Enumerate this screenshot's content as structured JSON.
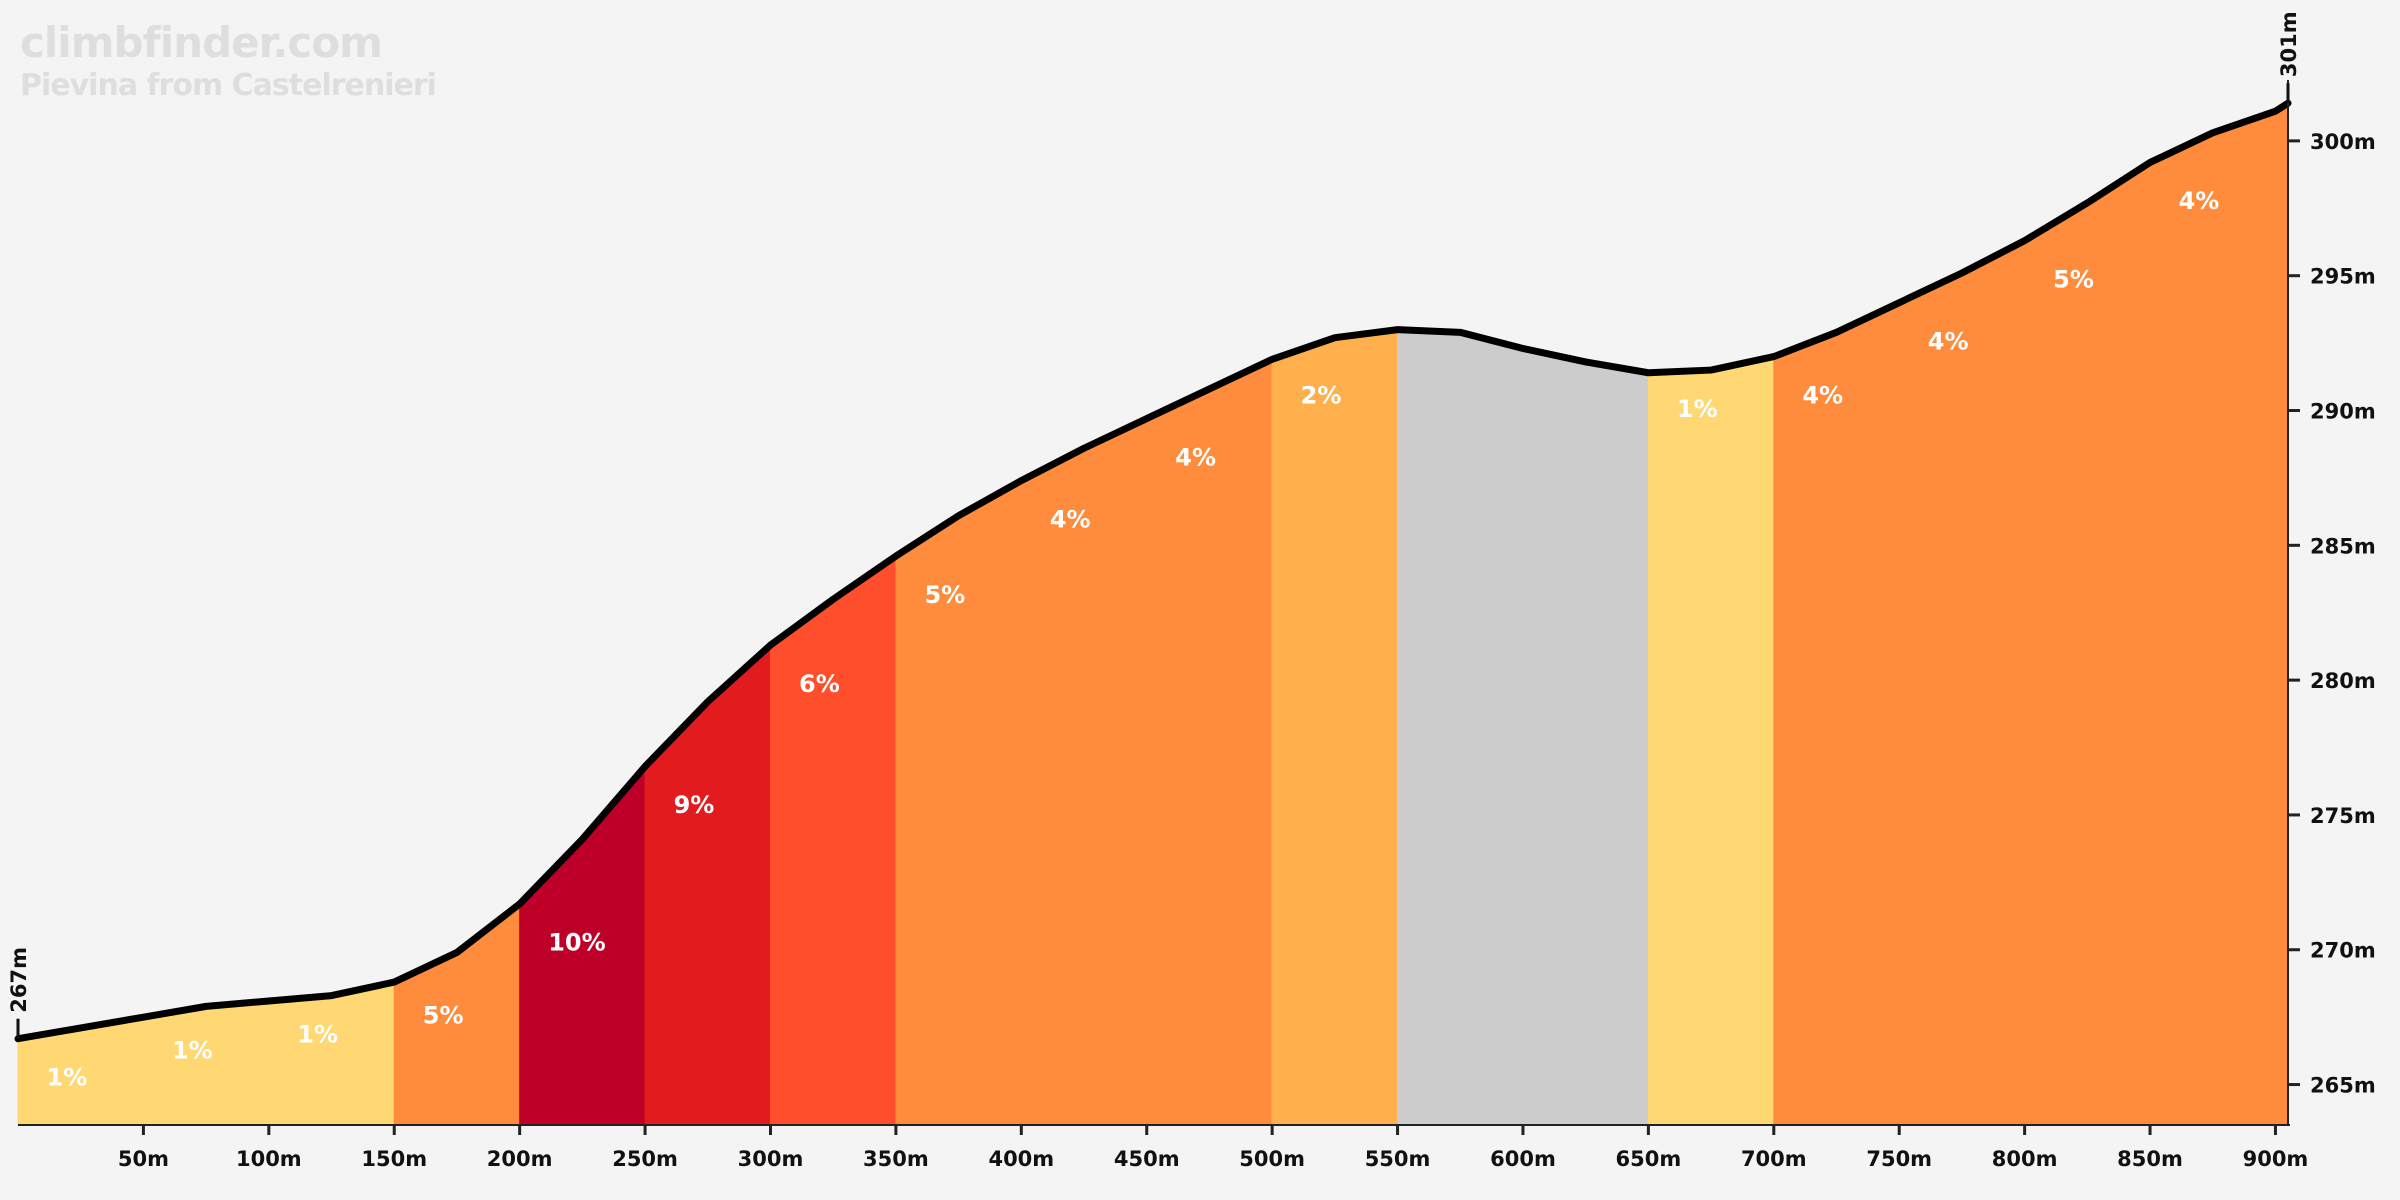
{
  "watermark": {
    "site": "climbfinder.com",
    "climb": "Pievina from Castelrenieri"
  },
  "chart_data": {
    "type": "area",
    "title": "",
    "xlabel": "",
    "ylabel": "",
    "xlim": [
      0,
      905
    ],
    "ylim": [
      263.5,
      303
    ],
    "x_ticks": [
      "50m",
      "100m",
      "150m",
      "200m",
      "250m",
      "300m",
      "350m",
      "400m",
      "450m",
      "500m",
      "550m",
      "600m",
      "650m",
      "700m",
      "750m",
      "800m",
      "850m",
      "900m"
    ],
    "y_ticks": [
      "265m",
      "270m",
      "275m",
      "280m",
      "285m",
      "290m",
      "295m",
      "300m"
    ],
    "start_label": "267m",
    "end_label": "301m",
    "profile": {
      "distance_m": [
        0,
        25,
        50,
        75,
        100,
        125,
        150,
        175,
        200,
        225,
        250,
        275,
        300,
        325,
        350,
        375,
        400,
        425,
        450,
        475,
        500,
        525,
        550,
        575,
        600,
        625,
        650,
        675,
        700,
        725,
        750,
        775,
        800,
        825,
        850,
        875,
        900,
        905
      ],
      "elevation_m": [
        266.7,
        267.1,
        267.5,
        267.9,
        268.1,
        268.3,
        268.8,
        269.9,
        271.7,
        274.1,
        276.8,
        279.2,
        281.3,
        283.0,
        284.6,
        286.1,
        287.4,
        288.6,
        289.7,
        290.8,
        291.9,
        292.7,
        293.0,
        292.9,
        292.3,
        291.8,
        291.4,
        291.5,
        292.0,
        292.9,
        294.0,
        295.1,
        296.3,
        297.7,
        299.2,
        300.3,
        301.1,
        301.4
      ]
    },
    "segments": [
      {
        "start": 0,
        "end": 150,
        "color": "#ffd874"
      },
      {
        "start": 150,
        "end": 200,
        "color": "#ff8c3d"
      },
      {
        "start": 200,
        "end": 250,
        "color": "#be0028"
      },
      {
        "start": 250,
        "end": 300,
        "color": "#e21b1f"
      },
      {
        "start": 300,
        "end": 350,
        "color": "#ff4e2c"
      },
      {
        "start": 350,
        "end": 500,
        "color": "#ff8c3d"
      },
      {
        "start": 500,
        "end": 550,
        "color": "#ffb04c"
      },
      {
        "start": 550,
        "end": 650,
        "color": "#cccccc"
      },
      {
        "start": 650,
        "end": 700,
        "color": "#ffd874"
      },
      {
        "start": 700,
        "end": 905,
        "color": "#ff8c3d"
      }
    ],
    "grade_labels": [
      {
        "x": 5,
        "y": 265.3,
        "label": "1%"
      },
      {
        "x": 55,
        "y": 266.3,
        "label": "1%"
      },
      {
        "x": 105,
        "y": 266.9,
        "label": "1%"
      },
      {
        "x": 155,
        "y": 267.6,
        "label": "5%"
      },
      {
        "x": 205,
        "y": 270.3,
        "label": "10%"
      },
      {
        "x": 255,
        "y": 275.4,
        "label": "9%"
      },
      {
        "x": 305,
        "y": 279.9,
        "label": "6%"
      },
      {
        "x": 355,
        "y": 283.2,
        "label": "5%"
      },
      {
        "x": 405,
        "y": 286.0,
        "label": "4%"
      },
      {
        "x": 455,
        "y": 288.3,
        "label": "4%"
      },
      {
        "x": 505,
        "y": 290.6,
        "label": "2%"
      },
      {
        "x": 655,
        "y": 290.1,
        "label": "1%"
      },
      {
        "x": 705,
        "y": 290.6,
        "label": "4%"
      },
      {
        "x": 755,
        "y": 292.6,
        "label": "4%"
      },
      {
        "x": 805,
        "y": 294.9,
        "label": "5%"
      },
      {
        "x": 855,
        "y": 297.8,
        "label": "4%"
      }
    ]
  }
}
